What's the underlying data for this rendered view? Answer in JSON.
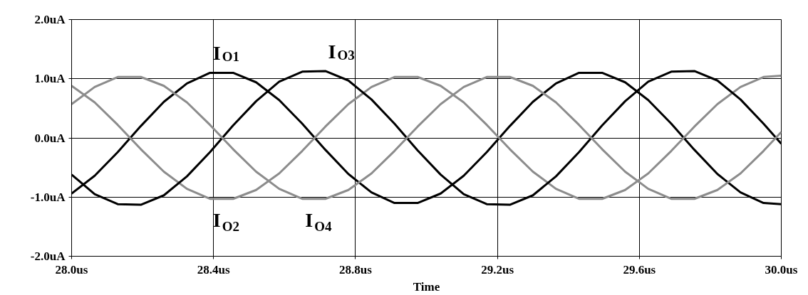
{
  "chart_data": {
    "type": "line",
    "xlabel": "Time",
    "x": [
      28.0,
      28.065,
      28.13,
      28.195,
      28.26,
      28.325,
      28.39,
      28.455,
      28.52,
      28.585,
      28.65,
      28.715,
      28.78,
      28.845,
      28.91,
      28.975,
      29.04,
      29.105,
      29.17,
      29.235,
      29.3,
      29.365,
      29.43,
      29.495,
      29.56,
      29.625,
      29.69,
      29.755,
      29.82,
      29.885,
      29.95,
      30.0
    ],
    "series": [
      {
        "name": "I$_{O1}$",
        "color": "#000000",
        "values": [
          -0.94,
          -0.64,
          -0.24,
          0.2,
          0.61,
          0.92,
          1.1,
          1.1,
          0.94,
          0.64,
          0.24,
          -0.2,
          -0.61,
          -0.92,
          -1.1,
          -1.1,
          -0.94,
          -0.64,
          -0.24,
          0.2,
          0.61,
          0.92,
          1.1,
          1.1,
          0.94,
          0.64,
          0.24,
          -0.2,
          -0.61,
          -0.92,
          -1.1,
          -1.12
        ]
      },
      {
        "name": "I$_{O2}$",
        "color": "#8c8c8c",
        "values": [
          0.88,
          0.6,
          0.22,
          -0.19,
          -0.57,
          -0.86,
          -1.03,
          -1.03,
          -0.88,
          -0.6,
          -0.22,
          0.19,
          0.57,
          0.86,
          1.03,
          1.03,
          0.88,
          0.6,
          0.22,
          -0.19,
          -0.57,
          -0.86,
          -1.03,
          -1.03,
          -0.88,
          -0.6,
          -0.22,
          0.19,
          0.57,
          0.86,
          1.03,
          1.05
        ]
      },
      {
        "name": "I$_{O3}$",
        "color": "#000000",
        "values": [
          -0.62,
          -0.95,
          -1.12,
          -1.13,
          -0.97,
          -0.65,
          -0.24,
          0.21,
          0.62,
          0.95,
          1.12,
          1.13,
          0.97,
          0.65,
          0.24,
          -0.21,
          -0.62,
          -0.95,
          -1.12,
          -1.13,
          -0.97,
          -0.65,
          -0.24,
          0.21,
          0.62,
          0.95,
          1.12,
          1.13,
          0.97,
          0.65,
          0.24,
          -0.1
        ]
      },
      {
        "name": "I$_{O4}$",
        "color": "#8c8c8c",
        "values": [
          0.57,
          0.86,
          1.03,
          1.03,
          0.88,
          0.6,
          0.22,
          -0.19,
          -0.57,
          -0.86,
          -1.03,
          -1.03,
          -0.88,
          -0.6,
          -0.22,
          0.19,
          0.57,
          0.86,
          1.03,
          1.03,
          0.88,
          0.6,
          0.22,
          -0.19,
          -0.57,
          -0.86,
          -1.03,
          -1.03,
          -0.88,
          -0.6,
          -0.22,
          0.1
        ]
      }
    ],
    "xlim": [
      28.0,
      30.0
    ],
    "ylim": [
      -2.0,
      2.0
    ],
    "xticks": [
      {
        "value": 28.0,
        "label": "28.0us"
      },
      {
        "value": 28.4,
        "label": "28.4us"
      },
      {
        "value": 28.8,
        "label": "28.8us"
      },
      {
        "value": 29.2,
        "label": "29.2us"
      },
      {
        "value": 29.6,
        "label": "29.6us"
      },
      {
        "value": 30.0,
        "label": "30.0us"
      }
    ],
    "yticks": [
      {
        "value": -2.0,
        "label": "-2.0uA"
      },
      {
        "value": -1.0,
        "label": "-1.0uA"
      },
      {
        "value": 0.0,
        "label": "0.0uA"
      },
      {
        "value": 1.0,
        "label": "1.0uA"
      },
      {
        "value": 2.0,
        "label": "2.0uA"
      }
    ],
    "grid": true,
    "line_style": "solid",
    "marker": "none"
  }
}
